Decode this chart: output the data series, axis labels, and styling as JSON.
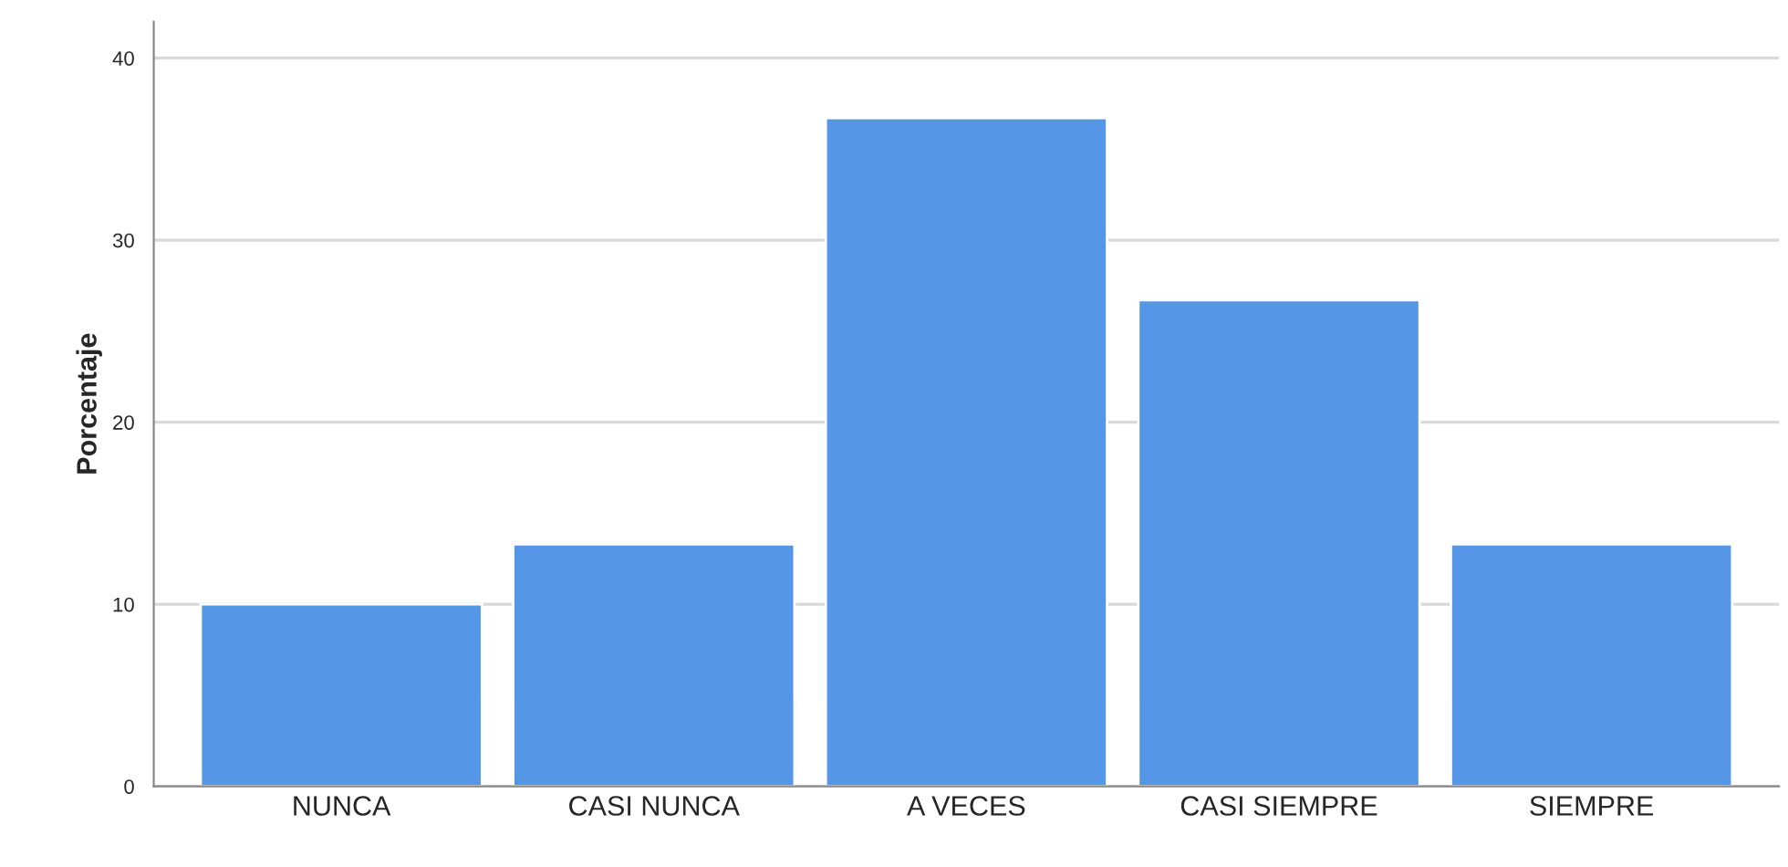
{
  "chart_data": {
    "type": "bar",
    "ylabel": "Porcentaje",
    "categories": [
      "NUNCA",
      "CASI NUNCA",
      "A VECES",
      "CASI SIEMPRE",
      "SIEMPRE"
    ],
    "values": [
      10,
      13.3,
      36.7,
      26.7,
      13.3
    ],
    "color": "#5596e6",
    "ylim": [
      0,
      42
    ],
    "yticks": [
      0,
      10,
      20,
      30,
      40
    ],
    "grid": "y",
    "legend": false
  }
}
